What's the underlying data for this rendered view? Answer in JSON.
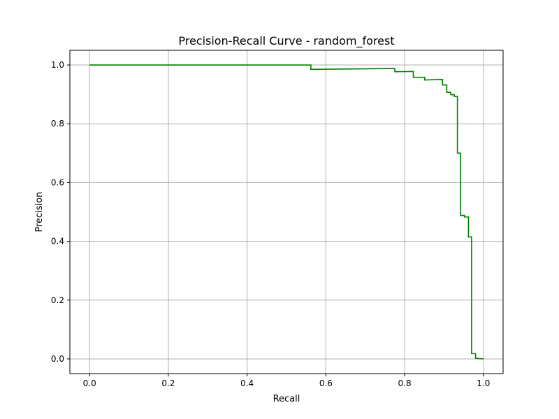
{
  "chart_data": {
    "type": "line",
    "title": "Precision-Recall Curve - random_forest",
    "xlabel": "Recall",
    "ylabel": "Precision",
    "xlim": [
      -0.05,
      1.05
    ],
    "ylim": [
      -0.05,
      1.05
    ],
    "x_ticks": [
      "0.0",
      "0.2",
      "0.4",
      "0.6",
      "0.8",
      "1.0"
    ],
    "y_ticks": [
      "0.0",
      "0.2",
      "0.4",
      "0.6",
      "0.8",
      "1.0"
    ],
    "grid": true,
    "legend": "none",
    "series": [
      {
        "color": "#008000",
        "step": "post",
        "recall": [
          0.0,
          0.562,
          0.562,
          0.775,
          0.775,
          0.822,
          0.822,
          0.851,
          0.851,
          0.896,
          0.896,
          0.907,
          0.907,
          0.917,
          0.917,
          0.926,
          0.926,
          0.934,
          0.934,
          0.942,
          0.942,
          0.952,
          0.952,
          0.962,
          0.962,
          0.97,
          0.97,
          0.98,
          0.98,
          1.0
        ],
        "precision": [
          1.0,
          1.0,
          0.985,
          0.988,
          0.977,
          0.978,
          0.958,
          0.958,
          0.949,
          0.951,
          0.932,
          0.932,
          0.907,
          0.907,
          0.899,
          0.899,
          0.893,
          0.893,
          0.7,
          0.7,
          0.488,
          0.488,
          0.483,
          0.483,
          0.415,
          0.415,
          0.018,
          0.018,
          0.002,
          0.0
        ]
      }
    ]
  }
}
